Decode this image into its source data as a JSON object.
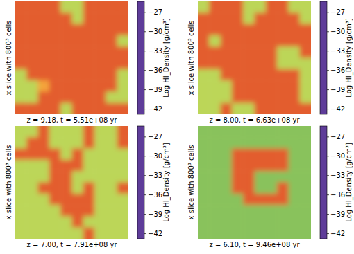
{
  "chart_data": [
    {
      "type": "heatmap",
      "title": "z = 9.18, t = 5.51e+08 yr",
      "ylabel": "x slice with 800³  cells",
      "colorbar_label": "Log HI_Density [g/cm³]",
      "tick_labels": false,
      "color_range": [
        -42.8,
        -25.3
      ],
      "color_ticks": [
        {
          "value": -27,
          "label": "−27"
        },
        {
          "value": -30,
          "label": "−30"
        },
        {
          "value": -33,
          "label": "−33"
        },
        {
          "value": -36,
          "label": "−36"
        },
        {
          "value": -39,
          "label": "−39"
        },
        {
          "value": -42,
          "label": "−42"
        }
      ],
      "cells": [
        [
          -28.5,
          -28.5,
          -28.5,
          -28.5,
          -34.5,
          -34.5,
          -28.5,
          -28.5,
          -28.5,
          -28.5
        ],
        [
          -28.5,
          -28.5,
          -28.5,
          -28.5,
          -28.5,
          -34.5,
          -28.5,
          -28.5,
          -28.5,
          -28.5
        ],
        [
          -28.5,
          -28.5,
          -28.5,
          -28.5,
          -28.5,
          -28.5,
          -28.5,
          -28.5,
          -28.5,
          -28.5
        ],
        [
          -28.5,
          -28.5,
          -28.5,
          -28.5,
          -28.5,
          -28.5,
          -28.5,
          -28.5,
          -28.5,
          -34.5
        ],
        [
          -28.5,
          -28.5,
          -28.5,
          -28.5,
          -28.5,
          -28.5,
          -28.5,
          -28.5,
          -28.5,
          -28.5
        ],
        [
          -28.5,
          -28.5,
          -28.5,
          -28.5,
          -28.5,
          -28.5,
          -28.5,
          -28.5,
          -28.5,
          -28.5
        ],
        [
          -34.5,
          -28.5,
          -28.5,
          -28.5,
          -28.5,
          -28.5,
          -28.5,
          -28.5,
          -28.5,
          -34.5
        ],
        [
          -34.5,
          -34.5,
          -31,
          -28.5,
          -28.5,
          -28.5,
          -28.5,
          -28.5,
          -28.5,
          -34.5
        ],
        [
          -34.5,
          -34.5,
          -28.5,
          -28.5,
          -28.5,
          -28.5,
          -28.5,
          -28.5,
          -34.5,
          -34.5
        ],
        [
          -28.5,
          -28.5,
          -28.5,
          -28.5,
          -34.5,
          -28.5,
          -28.5,
          -28.5,
          -28.5,
          -28.5
        ]
      ]
    },
    {
      "type": "heatmap",
      "title": "z = 8.00, t = 6.63e+08 yr",
      "ylabel": "x slice with 800³  cells",
      "colorbar_label": "Log HI_Density [g/cm³]",
      "tick_labels": false,
      "color_range": [
        -42.8,
        -25.3
      ],
      "color_ticks": [
        {
          "value": -27,
          "label": "−27"
        },
        {
          "value": -30,
          "label": "−30"
        },
        {
          "value": -33,
          "label": "−33"
        },
        {
          "value": -36,
          "label": "−36"
        },
        {
          "value": -39,
          "label": "−39"
        },
        {
          "value": -42,
          "label": "−42"
        }
      ],
      "cells": [
        [
          -34.5,
          -28.5,
          -28.5,
          -28.5,
          -34.5,
          -34.5,
          -28.5,
          -28.5,
          -34.5,
          -34.5
        ],
        [
          -28.5,
          -28.5,
          -28.5,
          -28.5,
          -34.5,
          -28.5,
          -28.5,
          -28.5,
          -28.5,
          -34.5
        ],
        [
          -28.5,
          -28.5,
          -28.5,
          -28.5,
          -28.5,
          -28.5,
          -28.5,
          -28.5,
          -28.5,
          -28.5
        ],
        [
          -28.5,
          -34.5,
          -28.5,
          -28.5,
          -28.5,
          -28.5,
          -28.5,
          -28.5,
          -28.5,
          -28.5
        ],
        [
          -28.5,
          -28.5,
          -28.5,
          -28.5,
          -28.5,
          -28.5,
          -28.5,
          -34.5,
          -34.5,
          -28.5
        ],
        [
          -28.5,
          -28.5,
          -28.5,
          -28.5,
          -28.5,
          -28.5,
          -28.5,
          -34.5,
          -34.5,
          -34.5
        ],
        [
          -34.5,
          -34.5,
          -28.5,
          -28.5,
          -28.5,
          -28.5,
          -28.5,
          -28.5,
          -28.5,
          -34.5
        ],
        [
          -34.5,
          -34.5,
          -34.5,
          -28.5,
          -28.5,
          -28.5,
          -28.5,
          -28.5,
          -28.5,
          -34.5
        ],
        [
          -34.5,
          -34.5,
          -34.5,
          -28.5,
          -28.5,
          -28.5,
          -28.5,
          -28.5,
          -28.5,
          -34.5
        ],
        [
          -34.5,
          -34.5,
          -28.5,
          -34.5,
          -34.5,
          -28.5,
          -28.5,
          -28.5,
          -28.5,
          -28.5
        ]
      ]
    },
    {
      "type": "heatmap",
      "title": "z = 7.00, t = 7.91e+08 yr",
      "ylabel": "x slice with 800³  cells",
      "colorbar_label": "Log HI_Density [g/cm³]",
      "tick_labels": false,
      "color_range": [
        -42.8,
        -25.3
      ],
      "color_ticks": [
        {
          "value": -27,
          "label": "−27"
        },
        {
          "value": -30,
          "label": "−30"
        },
        {
          "value": -33,
          "label": "−33"
        },
        {
          "value": -36,
          "label": "−36"
        },
        {
          "value": -39,
          "label": "−39"
        },
        {
          "value": -42,
          "label": "−42"
        }
      ],
      "cells": [
        [
          -34.5,
          -34.5,
          -28.5,
          -34.5,
          -34.5,
          -34.5,
          -28.5,
          -34.5,
          -34.5,
          -28.5
        ],
        [
          -34.5,
          -28.5,
          -28.5,
          -34.5,
          -34.5,
          -34.5,
          -28.5,
          -34.5,
          -34.5,
          -28.5
        ],
        [
          -28.5,
          -28.5,
          -28.5,
          -28.5,
          -34.5,
          -28.5,
          -34.5,
          -34.5,
          -34.5,
          -34.5
        ],
        [
          -34.5,
          -34.5,
          -34.5,
          -28.5,
          -28.5,
          -28.5,
          -34.5,
          -34.5,
          -34.5,
          -34.5
        ],
        [
          -34.5,
          -34.5,
          -34.5,
          -28.5,
          -28.5,
          -34.5,
          -34.5,
          -34.5,
          -34.5,
          -34.5
        ],
        [
          -34.5,
          -34.5,
          -28.5,
          -28.5,
          -28.5,
          -34.5,
          -28.5,
          -34.5,
          -34.5,
          -28.5
        ],
        [
          -34.5,
          -34.5,
          -34.5,
          -28.5,
          -28.5,
          -28.5,
          -28.5,
          -34.5,
          -34.5,
          -34.5
        ],
        [
          -34.5,
          -34.5,
          -34.5,
          -34.5,
          -28.5,
          -28.5,
          -28.5,
          -34.5,
          -34.5,
          -34.5
        ],
        [
          -34.5,
          -34.5,
          -34.5,
          -34.5,
          -34.5,
          -28.5,
          -34.5,
          -34.5,
          -34.5,
          -34.5
        ],
        [
          -34.5,
          -34.5,
          -34.5,
          -34.5,
          -34.5,
          -34.5,
          -28.5,
          -34.5,
          -34.5,
          -34.5
        ]
      ]
    },
    {
      "type": "heatmap",
      "title": "z = 6.10, t = 9.46e+08 yr",
      "ylabel": "x slice with 800³  cells",
      "colorbar_label": "Log HI_Density [g/cm³]",
      "tick_labels": false,
      "color_range": [
        -42.8,
        -25.3
      ],
      "color_ticks": [
        {
          "value": -27,
          "label": "−27"
        },
        {
          "value": -30,
          "label": "−30"
        },
        {
          "value": -33,
          "label": "−33"
        },
        {
          "value": -36,
          "label": "−36"
        },
        {
          "value": -39,
          "label": "−39"
        },
        {
          "value": -42,
          "label": "−42"
        }
      ],
      "cells": [
        [
          -35.7,
          -35.7,
          -35.7,
          -35.7,
          -35.7,
          -35.7,
          -35.7,
          -35.7,
          -35.7,
          -35.7
        ],
        [
          -35.7,
          -35.7,
          -35.7,
          -35.7,
          -35.7,
          -35.7,
          -35.7,
          -35.7,
          -35.7,
          -35.7
        ],
        [
          -35.7,
          -35.7,
          -35.7,
          -28.5,
          -28.5,
          -28.5,
          -28.5,
          -28.5,
          -35.7,
          -35.7
        ],
        [
          -35.7,
          -35.7,
          -35.7,
          -28.5,
          -28.5,
          -28.5,
          -28.5,
          -28.5,
          -35.7,
          -35.7
        ],
        [
          -35.7,
          -35.7,
          -35.7,
          -28.5,
          -28.5,
          -35.7,
          -35.7,
          -35.7,
          -35.7,
          -35.7
        ],
        [
          -35.7,
          -35.7,
          -35.7,
          -28.5,
          -28.5,
          -35.7,
          -35.7,
          -28.5,
          -35.7,
          -35.7
        ],
        [
          -35.7,
          -35.7,
          -35.7,
          -35.7,
          -28.5,
          -28.5,
          -28.5,
          -28.5,
          -35.7,
          -35.7
        ],
        [
          -35.7,
          -35.7,
          -35.7,
          -35.7,
          -35.7,
          -35.7,
          -35.7,
          -35.7,
          -35.7,
          -35.7
        ],
        [
          -35.7,
          -35.7,
          -35.7,
          -35.7,
          -35.7,
          -35.7,
          -35.7,
          -35.7,
          -35.7,
          -35.7
        ],
        [
          -35.7,
          -35.7,
          -35.7,
          -35.7,
          -35.7,
          -35.7,
          -35.7,
          -35.7,
          -35.7,
          -35.7
        ]
      ]
    }
  ]
}
